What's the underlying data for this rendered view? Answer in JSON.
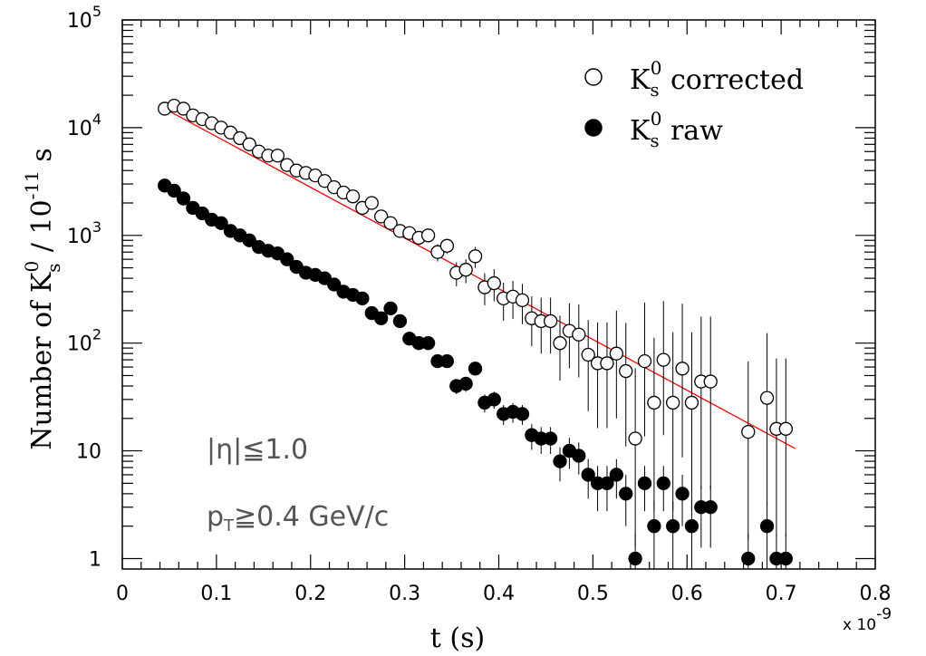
{
  "chart_data": {
    "type": "scatter",
    "xlabel": "t (s)",
    "x_multiplier_label": "x 10",
    "x_multiplier_exponent": "-9",
    "ylabel": {
      "main": "Number of K",
      "sub_s": "s",
      "sup_0": "0",
      "mid": " / 10",
      "exp": "-11",
      "end": " s"
    },
    "xlim": [
      0,
      0.8
    ],
    "ylim": [
      0.8,
      100000
    ],
    "y_scale": "log",
    "x_ticks": [
      0,
      0.1,
      0.2,
      0.3,
      0.4,
      0.5,
      0.6,
      0.7,
      0.8
    ],
    "x_tick_labels": [
      "0",
      "0.1",
      "0.2",
      "0.3",
      "0.4",
      "0.5",
      "0.6",
      "0.7",
      "0.8"
    ],
    "y_tick_labels": [
      {
        "value": 1,
        "base": "1",
        "exp": ""
      },
      {
        "value": 10,
        "base": "10",
        "exp": ""
      },
      {
        "value": 100,
        "base": "10",
        "exp": "2"
      },
      {
        "value": 1000,
        "base": "10",
        "exp": "3"
      },
      {
        "value": 10000,
        "base": "10",
        "exp": "4"
      },
      {
        "value": 100000,
        "base": "10",
        "exp": "5"
      }
    ],
    "legend": {
      "placement": "top-right",
      "entries": [
        {
          "symbol": "open-circle",
          "label_base": "K",
          "label_sub": "s",
          "label_sup": "0",
          "label_rest": " corrected"
        },
        {
          "symbol": "filled-circle",
          "label_base": "K",
          "label_sub": "s",
          "label_sup": "0",
          "label_rest": " raw"
        }
      ]
    },
    "annotations": [
      {
        "text": "|η|≦1.0"
      },
      {
        "text_main": "p",
        "text_sub": "T",
        "text_rest": "≧0.4 GeV/c"
      }
    ],
    "fit_line": {
      "color": "#ff0000",
      "x": [
        0.045,
        0.715
      ],
      "y": [
        15000,
        10.5
      ]
    },
    "series": [
      {
        "name": "K_s^0 corrected",
        "marker": "open-circle",
        "x": [
          0.045,
          0.055,
          0.065,
          0.075,
          0.085,
          0.095,
          0.105,
          0.115,
          0.125,
          0.135,
          0.145,
          0.155,
          0.165,
          0.175,
          0.185,
          0.195,
          0.205,
          0.215,
          0.225,
          0.235,
          0.245,
          0.255,
          0.265,
          0.275,
          0.285,
          0.295,
          0.305,
          0.315,
          0.325,
          0.335,
          0.345,
          0.355,
          0.365,
          0.375,
          0.385,
          0.395,
          0.405,
          0.415,
          0.425,
          0.435,
          0.445,
          0.455,
          0.465,
          0.475,
          0.485,
          0.495,
          0.505,
          0.515,
          0.525,
          0.535,
          0.545,
          0.555,
          0.565,
          0.575,
          0.585,
          0.595,
          0.605,
          0.615,
          0.625,
          0.665,
          0.685,
          0.695,
          0.705
        ],
        "y": [
          15000,
          16000,
          15000,
          13000,
          12000,
          11000,
          10000,
          9000,
          8000,
          7000,
          6000,
          5500,
          5500,
          4500,
          4000,
          3800,
          3600,
          3200,
          2800,
          2500,
          2300,
          1800,
          2000,
          1500,
          1300,
          1100,
          1050,
          950,
          1000,
          700,
          800,
          450,
          480,
          640,
          330,
          360,
          260,
          270,
          250,
          170,
          160,
          160,
          100,
          130,
          120,
          78,
          65,
          65,
          80,
          55,
          13,
          68,
          28,
          70,
          28,
          58,
          28,
          44,
          44,
          15,
          31,
          16,
          16
        ],
        "err_low_ratio": [
          0.03,
          0.03,
          0.03,
          0.03,
          0.03,
          0.03,
          0.03,
          0.04,
          0.04,
          0.04,
          0.04,
          0.05,
          0.05,
          0.05,
          0.05,
          0.06,
          0.06,
          0.06,
          0.07,
          0.07,
          0.08,
          0.08,
          0.09,
          0.09,
          0.1,
          0.12,
          0.13,
          0.14,
          0.14,
          0.18,
          0.16,
          0.25,
          0.25,
          0.22,
          0.32,
          0.32,
          0.38,
          0.38,
          0.4,
          0.45,
          0.5,
          0.5,
          0.55,
          0.55,
          0.6,
          0.7,
          0.75,
          0.75,
          0.75,
          0.8,
          0.9,
          0.8,
          0.9,
          0.8,
          0.9,
          0.85,
          0.9,
          0.9,
          0.9,
          0.9,
          0.9,
          0.9,
          0.9
        ],
        "err_high_ratio": [
          0.03,
          0.03,
          0.03,
          0.03,
          0.03,
          0.03,
          0.03,
          0.04,
          0.04,
          0.04,
          0.04,
          0.05,
          0.05,
          0.05,
          0.05,
          0.06,
          0.06,
          0.06,
          0.07,
          0.07,
          0.08,
          0.08,
          0.09,
          0.09,
          0.1,
          0.12,
          0.13,
          0.14,
          0.14,
          0.18,
          0.16,
          0.25,
          0.25,
          0.22,
          0.35,
          0.35,
          0.4,
          0.4,
          0.42,
          0.6,
          0.65,
          0.65,
          0.8,
          0.8,
          0.9,
          1.1,
          1.4,
          1.4,
          1.5,
          1.8,
          3.5,
          2.5,
          3,
          2.5,
          3.5,
          3,
          3.5,
          3,
          3,
          3.5,
          3,
          3.5,
          3.5
        ]
      },
      {
        "name": "K_s^0 raw",
        "marker": "filled-circle",
        "x": [
          0.045,
          0.055,
          0.065,
          0.075,
          0.085,
          0.095,
          0.105,
          0.115,
          0.125,
          0.135,
          0.145,
          0.155,
          0.165,
          0.175,
          0.185,
          0.195,
          0.205,
          0.215,
          0.225,
          0.235,
          0.245,
          0.255,
          0.265,
          0.275,
          0.285,
          0.295,
          0.305,
          0.315,
          0.325,
          0.335,
          0.345,
          0.355,
          0.365,
          0.375,
          0.385,
          0.395,
          0.405,
          0.415,
          0.425,
          0.435,
          0.445,
          0.455,
          0.465,
          0.475,
          0.485,
          0.495,
          0.505,
          0.515,
          0.525,
          0.535,
          0.545,
          0.555,
          0.565,
          0.575,
          0.585,
          0.595,
          0.605,
          0.615,
          0.625,
          0.665,
          0.685,
          0.695,
          0.705
        ],
        "y": [
          2900,
          2600,
          2200,
          1800,
          1600,
          1400,
          1300,
          1100,
          1000,
          900,
          780,
          720,
          680,
          600,
          510,
          450,
          430,
          400,
          350,
          300,
          280,
          260,
          190,
          170,
          210,
          160,
          110,
          100,
          100,
          68,
          68,
          40,
          42,
          58,
          28,
          30,
          22,
          23,
          22,
          14,
          13,
          13,
          8,
          10,
          9,
          6,
          5,
          5,
          6,
          4,
          1,
          5,
          2,
          5,
          2,
          4,
          2,
          3,
          3,
          1,
          2,
          1,
          1
        ],
        "err_low_ratio": [
          0.02,
          0.02,
          0.02,
          0.02,
          0.03,
          0.03,
          0.03,
          0.03,
          0.03,
          0.03,
          0.04,
          0.04,
          0.04,
          0.04,
          0.04,
          0.05,
          0.05,
          0.05,
          0.05,
          0.06,
          0.06,
          0.06,
          0.07,
          0.08,
          0.07,
          0.08,
          0.1,
          0.1,
          0.1,
          0.12,
          0.12,
          0.16,
          0.16,
          0.13,
          0.19,
          0.18,
          0.21,
          0.21,
          0.21,
          0.27,
          0.28,
          0.28,
          0.35,
          0.32,
          0.33,
          0.4,
          0.45,
          0.45,
          0.4,
          0.5,
          0.7,
          0.45,
          0.7,
          0.45,
          0.7,
          0.5,
          0.7,
          0.58,
          0.58,
          0.7,
          0.7,
          0.7,
          0.7
        ],
        "err_high_ratio": [
          0.02,
          0.02,
          0.02,
          0.02,
          0.03,
          0.03,
          0.03,
          0.03,
          0.03,
          0.03,
          0.04,
          0.04,
          0.04,
          0.04,
          0.04,
          0.05,
          0.05,
          0.05,
          0.05,
          0.06,
          0.06,
          0.06,
          0.07,
          0.08,
          0.07,
          0.08,
          0.1,
          0.1,
          0.1,
          0.12,
          0.12,
          0.16,
          0.16,
          0.13,
          0.19,
          0.18,
          0.21,
          0.21,
          0.21,
          0.27,
          0.28,
          0.28,
          0.35,
          0.32,
          0.33,
          0.4,
          0.45,
          0.45,
          0.4,
          0.5,
          0.7,
          0.45,
          0.7,
          0.45,
          0.7,
          0.5,
          0.7,
          0.58,
          0.58,
          0.7,
          0.7,
          0.7,
          0.7
        ]
      }
    ],
    "colors": {
      "axis": "#000000",
      "fit": "#ff0000",
      "markers": "#000000",
      "annotation": "#555555"
    }
  }
}
